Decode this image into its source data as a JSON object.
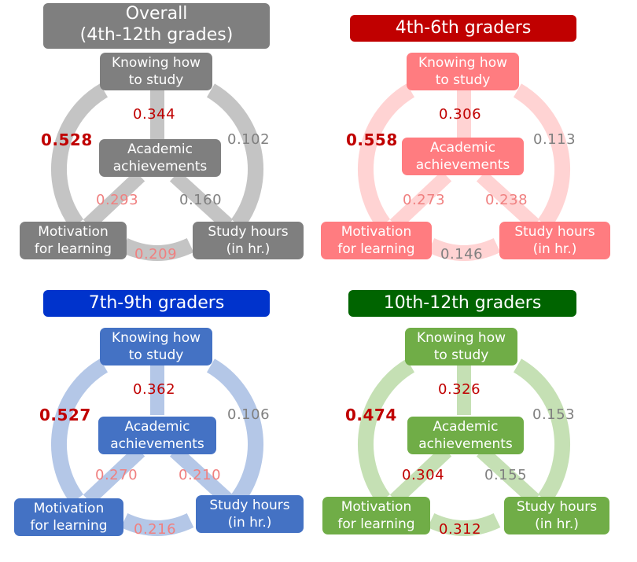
{
  "panels": [
    {
      "title": "Overall\n(4th-12th grades)",
      "colors": {
        "title_bg": "#7f7f7f",
        "box_bg": "#7f7f7f",
        "ring": "#c4c4c4"
      },
      "nodes": {
        "knowing": "Knowing how\nto study",
        "academic": "Academic\nachievements",
        "motivation": "Motivation\nfor learning",
        "hours": "Study hours\n(in hr.)"
      },
      "values": {
        "knowing_academic": "0.344",
        "knowing_motivation": "0.528",
        "knowing_hours": "0.102",
        "motivation_academic": "0.293",
        "hours_academic": "0.160",
        "motivation_hours": "0.209"
      },
      "value_colors": {
        "knowing_academic": "#c00000",
        "knowing_motivation": "#c00000",
        "knowing_hours": "#808080",
        "motivation_academic": "#f08080",
        "hours_academic": "#808080",
        "motivation_hours": "#f08080"
      }
    },
    {
      "title": "4th-6th graders",
      "colors": {
        "title_bg": "#c00000",
        "box_bg": "#ff7c80",
        "ring": "#ffd3d3"
      },
      "nodes": {
        "knowing": "Knowing how\nto study",
        "academic": "Academic\nachievements",
        "motivation": "Motivation\nfor learning",
        "hours": "Study hours\n(in hr.)"
      },
      "values": {
        "knowing_academic": "0.306",
        "knowing_motivation": "0.558",
        "knowing_hours": "0.113",
        "motivation_academic": "0.273",
        "hours_academic": "0.238",
        "motivation_hours": "0.146"
      },
      "value_colors": {
        "knowing_academic": "#c00000",
        "knowing_motivation": "#c00000",
        "knowing_hours": "#808080",
        "motivation_academic": "#f08080",
        "hours_academic": "#f08080",
        "motivation_hours": "#808080"
      }
    },
    {
      "title": "7th-9th graders",
      "colors": {
        "title_bg": "#0033cc",
        "box_bg": "#4472c4",
        "ring": "#b4c7e7"
      },
      "nodes": {
        "knowing": "Knowing how\nto study",
        "academic": "Academic\nachievements",
        "motivation": "Motivation\nfor learning",
        "hours": "Study hours\n(in hr.)"
      },
      "values": {
        "knowing_academic": "0.362",
        "knowing_motivation": "0.527",
        "knowing_hours": "0.106",
        "motivation_academic": "0.270",
        "hours_academic": "0.210",
        "motivation_hours": "0.216"
      },
      "value_colors": {
        "knowing_academic": "#c00000",
        "knowing_motivation": "#c00000",
        "knowing_hours": "#808080",
        "motivation_academic": "#f08080",
        "hours_academic": "#f08080",
        "motivation_hours": "#f08080"
      }
    },
    {
      "title": "10th-12th graders",
      "colors": {
        "title_bg": "#006400",
        "box_bg": "#70ad47",
        "ring": "#c5e0b4"
      },
      "nodes": {
        "knowing": "Knowing how\nto study",
        "academic": "Academic\nachievements",
        "motivation": "Motivation\nfor learning",
        "hours": "Study hours\n(in hr.)"
      },
      "values": {
        "knowing_academic": "0.326",
        "knowing_motivation": "0.474",
        "knowing_hours": "0.153",
        "motivation_academic": "0.304",
        "hours_academic": "0.155",
        "motivation_hours": "0.312"
      },
      "value_colors": {
        "knowing_academic": "#c00000",
        "knowing_motivation": "#c00000",
        "knowing_hours": "#808080",
        "motivation_academic": "#c00000",
        "hours_academic": "#808080",
        "motivation_hours": "#c00000"
      }
    }
  ]
}
